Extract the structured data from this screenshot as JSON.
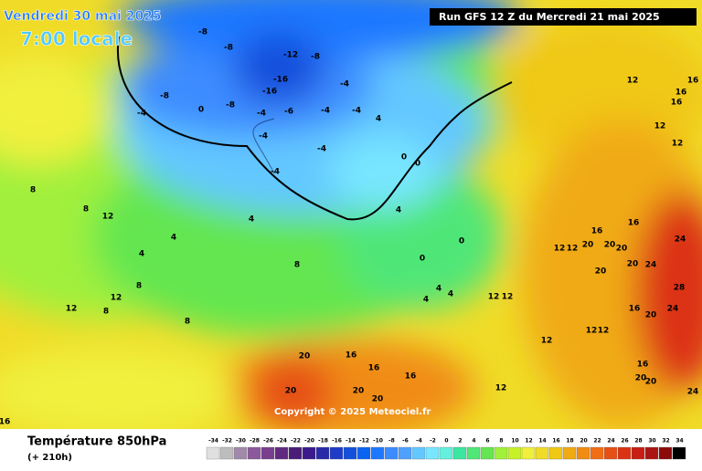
{
  "header": {
    "date": "Vendredi 30 mai 2025",
    "time": "7:00 locale",
    "run": "Run GFS 12 Z du Mercredi 21 mai 2025"
  },
  "copyright": "Copyright © 2025 Meteociel.fr",
  "footer": {
    "title": "Température 850hPa",
    "lead": "(+ 210h)"
  },
  "scale": {
    "values": [
      -34,
      -32,
      -30,
      -28,
      -26,
      -24,
      -22,
      -20,
      -18,
      -16,
      -14,
      -12,
      -10,
      -8,
      -6,
      -4,
      -2,
      0,
      2,
      4,
      6,
      8,
      10,
      12,
      14,
      16,
      18,
      20,
      22,
      24,
      26,
      28,
      30,
      32,
      34
    ],
    "colors": [
      "#e0e0e0",
      "#bdbdbd",
      "#a08aa8",
      "#8c5a9c",
      "#7a3e8e",
      "#602a80",
      "#4a1e78",
      "#3a1a8c",
      "#2a2aa8",
      "#1e3cc8",
      "#1450dc",
      "#0a64f0",
      "#1e78ff",
      "#3c8cff",
      "#50a0ff",
      "#64c8ff",
      "#78e6ff",
      "#64f0dc",
      "#3ce6a0",
      "#50e678",
      "#64e650",
      "#a0f03c",
      "#c8f028",
      "#f0f03c",
      "#f0dc28",
      "#f0c814",
      "#f0aa14",
      "#f08c14",
      "#f06e14",
      "#e65014",
      "#dc3214",
      "#c81e14",
      "#aa1414",
      "#8c0a0a",
      "#000000"
    ]
  },
  "map_labels": [
    -8,
    -8,
    -12,
    -8,
    -16,
    -16,
    -8,
    -8,
    -4,
    0,
    -4,
    -6,
    -4,
    -4,
    -4,
    4,
    -4,
    -4,
    -4,
    0,
    0,
    4,
    4,
    4,
    4,
    8,
    8,
    12,
    8,
    12,
    12,
    8,
    8,
    8,
    0,
    0,
    4,
    4,
    4,
    12,
    12,
    16,
    16,
    16,
    20,
    20,
    20,
    20,
    12,
    12,
    16,
    16,
    16,
    12,
    12,
    16,
    16,
    20,
    12,
    12,
    20,
    20,
    24,
    20,
    20,
    24,
    28,
    24,
    16,
    20,
    12,
    12,
    12,
    16,
    20,
    20,
    24,
    16
  ]
}
